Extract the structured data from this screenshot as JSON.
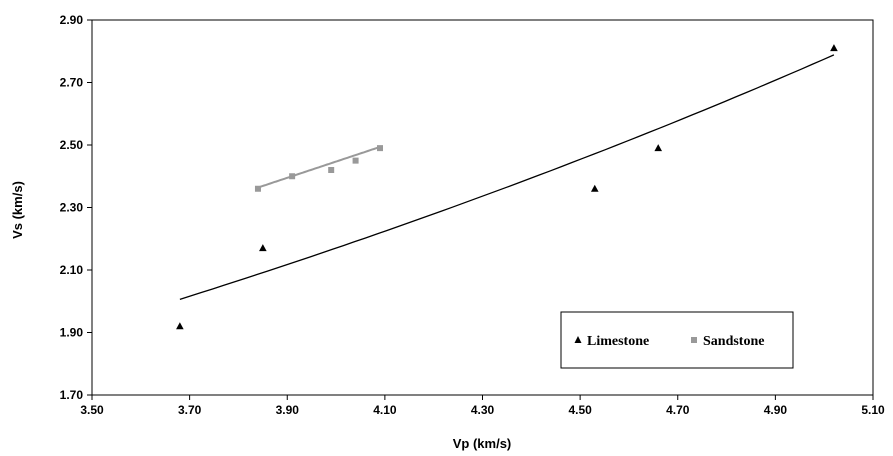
{
  "chart_data": {
    "type": "scatter",
    "title": "",
    "xlabel": "Vp (km/s)",
    "ylabel": "Vs (km/s)",
    "xlim": [
      3.5,
      5.1
    ],
    "ylim": [
      1.7,
      2.9
    ],
    "xticks": [
      "3.50",
      "3.70",
      "3.90",
      "4.10",
      "4.30",
      "4.50",
      "4.70",
      "4.90",
      "5.10"
    ],
    "yticks": [
      "1.70",
      "1.90",
      "2.10",
      "2.30",
      "2.50",
      "2.70",
      "2.90"
    ],
    "grid": false,
    "legend_position": "lower-right",
    "series": [
      {
        "name": "Limestone",
        "marker": "triangle",
        "color": "#000000",
        "x": [
          3.68,
          3.85,
          4.53,
          4.66,
          5.02
        ],
        "y": [
          1.92,
          2.17,
          2.36,
          2.49,
          2.81
        ],
        "trendline": {
          "type": "exponential",
          "x_range": [
            3.68,
            5.02
          ],
          "a": 0.8122,
          "b": 0.2457,
          "color": "#000000"
        }
      },
      {
        "name": "Sandstone",
        "marker": "square",
        "color": "#999999",
        "x": [
          3.84,
          3.91,
          3.99,
          4.04,
          4.09
        ],
        "y": [
          2.36,
          2.4,
          2.42,
          2.45,
          2.49
        ],
        "trendline": {
          "type": "linear",
          "x_range": [
            3.84,
            4.09
          ],
          "slope": 0.52,
          "intercept": 0.367,
          "color": "#999999"
        }
      }
    ]
  }
}
